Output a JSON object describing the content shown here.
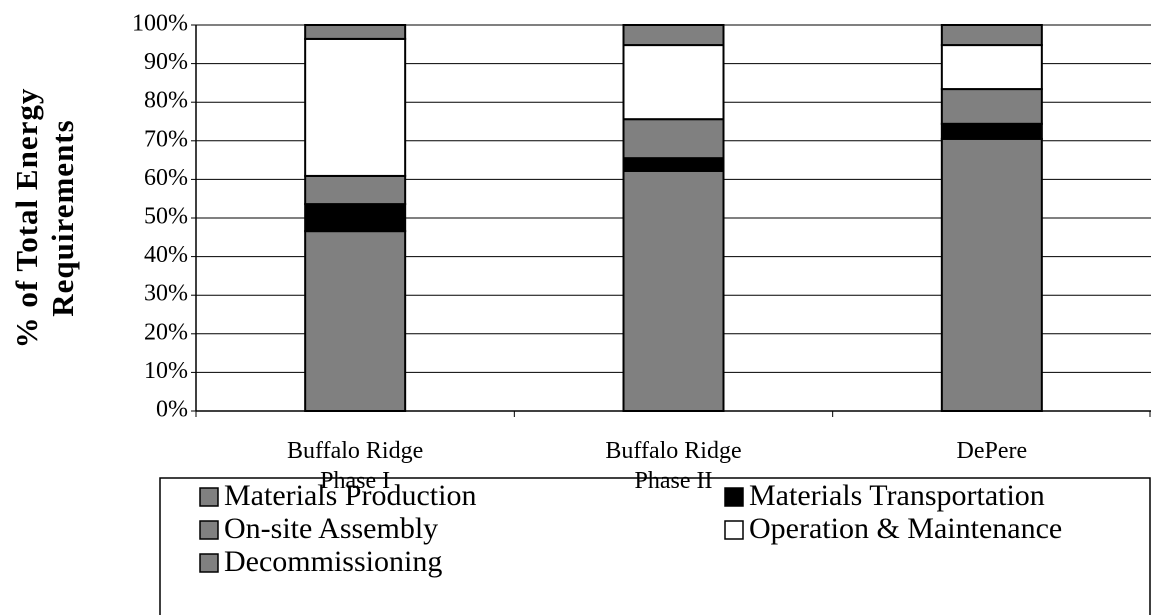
{
  "chart_data": {
    "type": "stacked_bar",
    "y_label": "% of Total Energy Requirements",
    "categories": [
      "Buffalo Ridge Phase I",
      "Buffalo Ridge Phase II",
      "DePere"
    ],
    "series": [
      {
        "name": "Materials Production",
        "color": "#808080",
        "values": [
          46.6,
          62.2,
          70.5
        ]
      },
      {
        "name": "Materials Transportation",
        "color": "#000000",
        "values": [
          7.0,
          3.3,
          3.9
        ]
      },
      {
        "name": "On-site Assembly",
        "color": "#808080",
        "values": [
          7.3,
          10.1,
          9.0
        ]
      },
      {
        "name": "Operation & Maintenance",
        "color": "#ffffff",
        "values": [
          35.5,
          19.2,
          11.4
        ]
      },
      {
        "name": "Decommissioning",
        "color": "#808080",
        "values": [
          3.6,
          5.2,
          5.2
        ]
      }
    ],
    "ylim": [
      0,
      100
    ],
    "yticks": [
      {
        "value": 0,
        "label": "0%"
      },
      {
        "value": 10,
        "label": "10%"
      },
      {
        "value": 20,
        "label": "20%"
      },
      {
        "value": 30,
        "label": "30%"
      },
      {
        "value": 40,
        "label": "40%"
      },
      {
        "value": 50,
        "label": "50%"
      },
      {
        "value": 60,
        "label": "60%"
      },
      {
        "value": 70,
        "label": "70%"
      },
      {
        "value": 80,
        "label": "80%"
      },
      {
        "value": 90,
        "label": "90%"
      },
      {
        "value": 100,
        "label": "100%"
      }
    ],
    "grid": true
  }
}
